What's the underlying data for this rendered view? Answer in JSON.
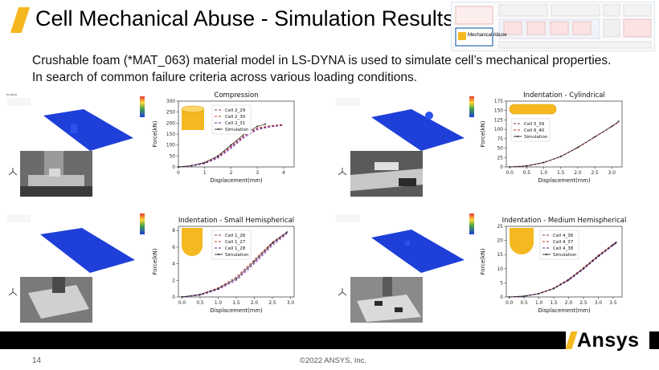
{
  "slide": {
    "title": "Cell Mechanical Abuse - Simulation Results",
    "bullets": [
      "Crushable foam (*MAT_063) material model in LS-DYNA is used to simulate cell’s mechanical properties.",
      "In search of common failure criteria across various loading conditions."
    ],
    "page_number": "14",
    "copyright": "©2022 ANSYS, Inc.",
    "brand": "Ansys"
  },
  "flowchart": {
    "highlight_label": "Mechanical Abuse",
    "accent_color": "#f5b820"
  },
  "colors": {
    "accent": "#f5b820",
    "sim_plate": "#1e3fd8",
    "foam_shape": "#f5b820"
  },
  "chart_data": [
    {
      "type": "line",
      "title": "Compression",
      "xlabel": "Displacement(mm)",
      "ylabel": "Force(kN)",
      "xlim": [
        0,
        4.4
      ],
      "ylim": [
        0,
        300
      ],
      "xticks": [
        0,
        1,
        2,
        3,
        4
      ],
      "yticks": [
        0,
        50,
        100,
        150,
        200,
        250,
        300
      ],
      "legend_position": "top-center",
      "icon": "cylinder-upright",
      "series": [
        {
          "name": "Cell 2_29",
          "color": "#8a2a6a",
          "dash": "3,2",
          "x": [
            0,
            0.5,
            1,
            1.5,
            2,
            2.5,
            3,
            3.5,
            4
          ],
          "y": [
            0,
            5,
            18,
            45,
            90,
            140,
            175,
            185,
            192
          ]
        },
        {
          "name": "Cell 2_30",
          "color": "#c0392b",
          "dash": "3,2",
          "x": [
            0,
            0.5,
            1,
            1.5,
            2,
            2.5,
            3,
            3.5,
            4
          ],
          "y": [
            0,
            6,
            20,
            48,
            95,
            145,
            178,
            188,
            194
          ]
        },
        {
          "name": "Cell 2_31",
          "color": "#6a1b9a",
          "dash": "3,2",
          "x": [
            0,
            0.5,
            1,
            1.5,
            2,
            2.5,
            3,
            3.5,
            4
          ],
          "y": [
            0,
            4,
            15,
            40,
            85,
            135,
            170,
            183,
            190
          ]
        },
        {
          "name": "Simulation",
          "color": "#222222",
          "dash": "",
          "x": [
            0,
            0.5,
            1,
            1.5,
            2,
            2.5,
            3,
            3.3
          ],
          "y": [
            0,
            6,
            20,
            50,
            100,
            150,
            185,
            195
          ]
        }
      ]
    },
    {
      "type": "line",
      "title": "Indentation - Cylindrical",
      "xlabel": "Displacement(mm)",
      "ylabel": "Force(kN)",
      "xlim": [
        -0.1,
        3.3
      ],
      "ylim": [
        0,
        175
      ],
      "xticks": [
        0.0,
        0.5,
        1.0,
        1.5,
        2.0,
        2.5,
        3.0
      ],
      "yticks": [
        0,
        25,
        50,
        75,
        100,
        125,
        150,
        175
      ],
      "legend_position": "top-left",
      "icon": "cylinder-horizontal",
      "series": [
        {
          "name": "Cell 5_39",
          "color": "#8a2a6a",
          "dash": "3,2",
          "x": [
            0,
            0.5,
            1,
            1.5,
            2,
            2.5,
            3,
            3.2
          ],
          "y": [
            0,
            3,
            12,
            28,
            52,
            80,
            108,
            120
          ]
        },
        {
          "name": "Cell 6_40",
          "color": "#c0392b",
          "dash": "3,2",
          "x": [
            0,
            0.5,
            1,
            1.5,
            2,
            2.5,
            3,
            3.2
          ],
          "y": [
            0,
            2,
            11,
            27,
            51,
            79,
            107,
            119
          ]
        },
        {
          "name": "Simulation",
          "color": "#222222",
          "dash": "",
          "x": [
            0,
            0.5,
            1,
            1.5,
            2,
            2.5,
            3,
            3.2
          ],
          "y": [
            0,
            3,
            12,
            28,
            52,
            80,
            108,
            121
          ]
        }
      ]
    },
    {
      "type": "line",
      "title": "Indentation - Small Hemispherical",
      "xlabel": "Displacement(mm)",
      "ylabel": "Force(kN)",
      "xlim": [
        -0.1,
        3.1
      ],
      "ylim": [
        0,
        8.5
      ],
      "xticks": [
        0.0,
        0.5,
        1.0,
        1.5,
        2.0,
        2.5,
        3.0
      ],
      "yticks": [
        0,
        2,
        4,
        6,
        8
      ],
      "legend_position": "top-center",
      "icon": "hemisphere-small",
      "series": [
        {
          "name": "Cell 1_26",
          "color": "#8a2a6a",
          "dash": "3,2",
          "x": [
            0,
            0.5,
            1,
            1.5,
            2,
            2.5,
            2.9
          ],
          "y": [
            0,
            0.3,
            1.0,
            2.2,
            4.2,
            6.4,
            7.7
          ]
        },
        {
          "name": "Cell 1_27",
          "color": "#c0392b",
          "dash": "3,2",
          "x": [
            0,
            0.5,
            1,
            1.5,
            2,
            2.5,
            2.9
          ],
          "y": [
            0,
            0.3,
            1.1,
            2.4,
            4.5,
            6.6,
            7.8
          ]
        },
        {
          "name": "Cell 1_28",
          "color": "#6a1b9a",
          "dash": "3,2",
          "x": [
            0,
            0.5,
            1,
            1.5,
            2,
            2.5,
            2.9
          ],
          "y": [
            0,
            0.2,
            0.9,
            2.0,
            4.0,
            6.2,
            7.6
          ]
        },
        {
          "name": "Simulation",
          "color": "#222222",
          "dash": "",
          "x": [
            0,
            0.5,
            1,
            1.5,
            2,
            2.5,
            2.9
          ],
          "y": [
            0,
            0.3,
            1.0,
            2.2,
            4.3,
            6.5,
            7.8
          ]
        }
      ]
    },
    {
      "type": "line",
      "title": "Indentation - Medium Hemispherical",
      "xlabel": "Displacement(mm)",
      "ylabel": "Force(kN)",
      "xlim": [
        -0.1,
        3.8
      ],
      "ylim": [
        0,
        25
      ],
      "xticks": [
        0.0,
        0.5,
        1.0,
        1.5,
        2.0,
        2.5,
        3.0,
        3.5
      ],
      "yticks": [
        0,
        5,
        10,
        15,
        20,
        25
      ],
      "legend_position": "top-center",
      "icon": "hemisphere-medium",
      "series": [
        {
          "name": "Cell 4_36",
          "color": "#8a2a6a",
          "dash": "3,2",
          "x": [
            0,
            0.5,
            1,
            1.5,
            2,
            2.5,
            3,
            3.5,
            3.6
          ],
          "y": [
            0,
            0.3,
            1.2,
            3.0,
            6.0,
            10.0,
            14.5,
            18.5,
            19.2
          ]
        },
        {
          "name": "Cell 4_37",
          "color": "#c0392b",
          "dash": "3,2",
          "x": [
            0,
            0.5,
            1,
            1.5,
            2,
            2.5,
            3,
            3.5,
            3.6
          ],
          "y": [
            0,
            0.3,
            1.3,
            3.2,
            6.3,
            10.4,
            14.8,
            18.7,
            19.4
          ]
        },
        {
          "name": "Cell 4_38",
          "color": "#6a1b9a",
          "dash": "3,2",
          "x": [
            0,
            0.5,
            1,
            1.5,
            2,
            2.5,
            3,
            3.5,
            3.6
          ],
          "y": [
            0,
            0.2,
            1.1,
            2.9,
            5.8,
            9.8,
            14.2,
            18.2,
            19.0
          ]
        },
        {
          "name": "Simulation",
          "color": "#222222",
          "dash": "",
          "x": [
            0,
            0.5,
            1,
            1.5,
            2,
            2.5,
            3,
            3.5,
            3.6
          ],
          "y": [
            0,
            0.3,
            1.2,
            3.0,
            6.1,
            10.1,
            14.5,
            18.5,
            19.3
          ]
        }
      ]
    }
  ]
}
